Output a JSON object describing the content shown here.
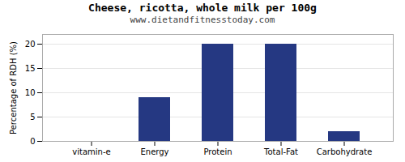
{
  "chart_data": {
    "type": "bar",
    "title": "Cheese, ricotta, whole milk per 100g",
    "subtitle": "www.dietandfitnesstoday.com",
    "categories": [
      "vitamin-e",
      "Energy",
      "Protein",
      "Total-Fat",
      "Carbohydrate"
    ],
    "values": [
      0,
      9,
      20,
      20,
      2
    ],
    "color": "#253882",
    "ylabel": "Percentage of RDH (%)",
    "ylim": [
      0,
      22
    ],
    "yticks": [
      0,
      5,
      10,
      15,
      20
    ],
    "grid": true
  }
}
